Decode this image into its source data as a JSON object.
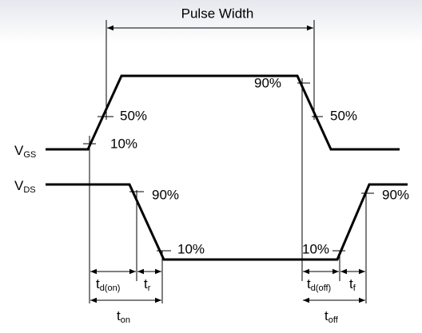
{
  "title": "Pulse Width",
  "signals": [
    {
      "main": "V",
      "sub": "GS"
    },
    {
      "main": "V",
      "sub": "DS"
    }
  ],
  "vgs_levels": [
    "10%",
    "50%",
    "90%",
    "50%"
  ],
  "vds_levels": [
    "90%",
    "10%",
    "10%",
    "90%"
  ],
  "intervals": [
    {
      "main": "t",
      "sub": "d(on)"
    },
    {
      "main": "t",
      "sub": "r"
    },
    {
      "main": "t",
      "sub": "d(off)"
    },
    {
      "main": "t",
      "sub": "f"
    },
    {
      "main": "t",
      "sub": "on"
    },
    {
      "main": "t",
      "sub": "off"
    }
  ]
}
